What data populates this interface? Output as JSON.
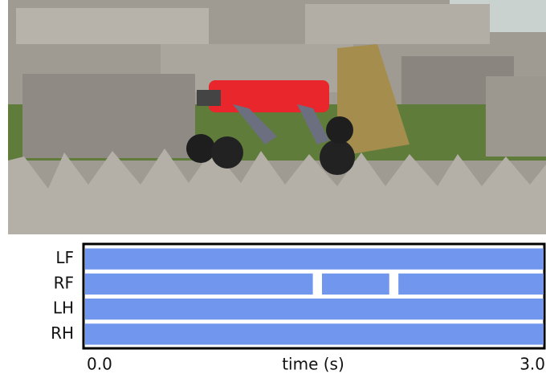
{
  "chart_data": {
    "type": "gait",
    "categories": [
      "LF",
      "RF",
      "LH",
      "RH"
    ],
    "series": [
      {
        "name": "LF",
        "color": "#7096ee",
        "values": [
          [
            0,
            3
          ]
        ]
      },
      {
        "name": "RF",
        "color": "#7096ee",
        "values": [
          [
            0,
            1.49
          ],
          [
            1.55,
            1.99
          ],
          [
            2.05,
            3
          ]
        ]
      },
      {
        "name": "LH",
        "color": "#7096ee",
        "values": [
          [
            0,
            3
          ]
        ]
      },
      {
        "name": "RH",
        "color": "#7096ee",
        "values": [
          [
            0,
            3
          ]
        ]
      }
    ],
    "xlabel": "time (s)",
    "xlim": [
      0,
      3
    ],
    "xticks": [
      {
        "value": 0,
        "label": "0.0"
      },
      {
        "value": 3,
        "label": "3.0"
      }
    ]
  }
}
